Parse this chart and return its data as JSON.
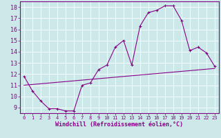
{
  "xlabel": "Windchill (Refroidissement éolien,°C)",
  "xlim": [
    -0.5,
    23.5
  ],
  "ylim": [
    8.5,
    18.5
  ],
  "yticks": [
    9,
    10,
    11,
    12,
    13,
    14,
    15,
    16,
    17,
    18
  ],
  "xticks": [
    0,
    1,
    2,
    3,
    4,
    5,
    6,
    7,
    8,
    9,
    10,
    11,
    12,
    13,
    14,
    15,
    16,
    17,
    18,
    19,
    20,
    21,
    22,
    23
  ],
  "bg_color": "#cce8e8",
  "line_color": "#880088",
  "grid_color": "#ffffff",
  "line1_x": [
    0,
    1,
    2,
    3,
    4,
    5,
    6,
    7,
    8,
    9,
    10,
    11,
    12,
    13,
    14,
    15,
    16,
    17,
    18,
    19,
    20,
    21,
    22,
    23
  ],
  "line1_y": [
    11.8,
    10.5,
    9.6,
    8.9,
    8.9,
    8.7,
    8.7,
    11.0,
    11.2,
    12.4,
    12.8,
    14.4,
    15.0,
    12.8,
    16.3,
    17.5,
    17.7,
    18.1,
    18.1,
    16.8,
    14.1,
    14.4,
    13.9,
    12.7
  ],
  "line2_x": [
    0,
    23
  ],
  "line2_y": [
    11.0,
    12.5
  ]
}
